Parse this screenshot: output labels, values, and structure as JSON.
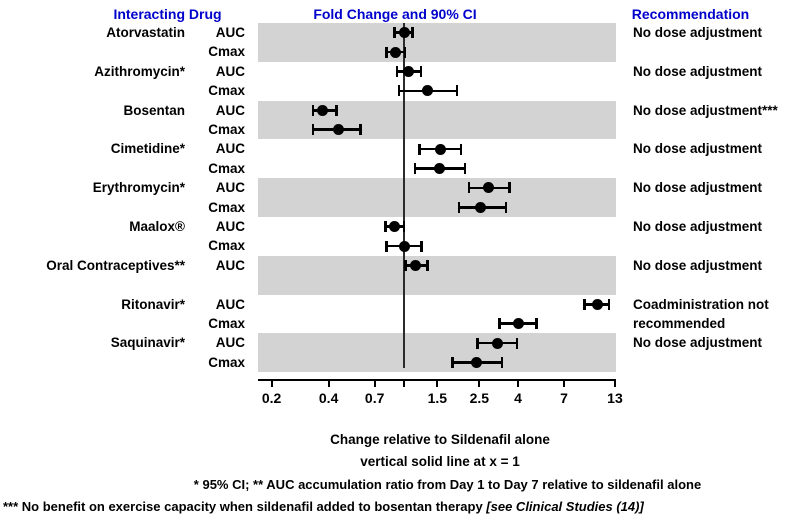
{
  "header": {
    "interacting_drug": "Interacting Drug",
    "fold_change": "Fold Change and 90% CI",
    "recommendation": "Recommendation"
  },
  "colors": {
    "header_blue": "#0000CC",
    "band_gray": "#D3D3D3",
    "marker_black": "#000000"
  },
  "chart_data": {
    "type": "scatter",
    "variant": "forest-plot-with-error-bars",
    "x_scale": "log",
    "x_range": [
      0.17,
      13.2
    ],
    "reference_line_x": 1,
    "reference_line_note": "vertical solid line at x = 1",
    "xlabel": "Change relative to Sildenafil alone",
    "x_ticks": [
      {
        "v": 0.2,
        "label": "0.2"
      },
      {
        "v": 0.4,
        "label": "0.4"
      },
      {
        "v": 0.7,
        "label": "0.7"
      },
      {
        "v": 1,
        "label": ""
      },
      {
        "v": 1.5,
        "label": "1.5"
      },
      {
        "v": 2.5,
        "label": "2.5"
      },
      {
        "v": 4,
        "label": "4"
      },
      {
        "v": 7,
        "label": "7"
      },
      {
        "v": 13,
        "label": "13"
      }
    ],
    "ci_level_default": "90% CI",
    "groups": [
      {
        "drug": "Atorvastatin",
        "recommendation": "No dose adjustment",
        "shaded": true,
        "rows": [
          {
            "param": "AUC",
            "value": 1.0,
            "lo": 0.89,
            "hi": 1.11
          },
          {
            "param": "Cmax",
            "value": 0.9,
            "lo": 0.81,
            "hi": 1.01
          }
        ]
      },
      {
        "drug": "Azithromycin*",
        "recommendation": "No dose adjustment",
        "shaded": false,
        "rows": [
          {
            "param": "AUC",
            "value": 1.05,
            "lo": 0.92,
            "hi": 1.23
          },
          {
            "param": "Cmax",
            "value": 1.33,
            "lo": 0.94,
            "hi": 1.9
          }
        ]
      },
      {
        "drug": "Bosentan",
        "recommendation": "No dose adjustment***",
        "shaded": true,
        "rows": [
          {
            "param": "AUC",
            "value": 0.37,
            "lo": 0.33,
            "hi": 0.44
          },
          {
            "param": "Cmax",
            "value": 0.45,
            "lo": 0.33,
            "hi": 0.59
          }
        ]
      },
      {
        "drug": "Cimetidine*",
        "recommendation": "No dose adjustment",
        "shaded": false,
        "rows": [
          {
            "param": "AUC",
            "value": 1.56,
            "lo": 1.21,
            "hi": 2.0
          },
          {
            "param": "Cmax",
            "value": 1.54,
            "lo": 1.14,
            "hi": 2.1
          }
        ]
      },
      {
        "drug": "Erythromycin*",
        "recommendation": "No dose adjustment",
        "shaded": true,
        "rows": [
          {
            "param": "AUC",
            "value": 2.8,
            "lo": 2.2,
            "hi": 3.6
          },
          {
            "param": "Cmax",
            "value": 2.55,
            "lo": 1.95,
            "hi": 3.45
          }
        ]
      },
      {
        "drug": "Maalox®",
        "recommendation": "No dose adjustment",
        "shaded": false,
        "rows": [
          {
            "param": "AUC",
            "value": 0.89,
            "lo": 0.8,
            "hi": 1.0
          },
          {
            "param": "Cmax",
            "value": 1.0,
            "lo": 0.81,
            "hi": 1.24
          }
        ]
      },
      {
        "drug": "Oral Contraceptives**",
        "recommendation": "No dose adjustment",
        "shaded": true,
        "rows": [
          {
            "param": "AUC",
            "value": 1.15,
            "lo": 1.02,
            "hi": 1.33
          }
        ]
      },
      {
        "drug": "Ritonavir*",
        "recommendation": "Coadministration not recommended",
        "shaded": false,
        "rows": [
          {
            "param": "AUC",
            "value": 10.5,
            "lo": 9.0,
            "hi": 12.1
          },
          {
            "param": "Cmax",
            "value": 4.0,
            "lo": 3.2,
            "hi": 5.0
          }
        ]
      },
      {
        "drug": "Saquinavir*",
        "recommendation": "No dose adjustment",
        "shaded": true,
        "rows": [
          {
            "param": "AUC",
            "value": 3.1,
            "lo": 2.45,
            "hi": 3.95
          },
          {
            "param": "Cmax",
            "value": 2.4,
            "lo": 1.8,
            "hi": 3.3
          }
        ]
      }
    ]
  },
  "footer": {
    "xlabel": "Change relative to Sildenafil alone",
    "note_line": "vertical solid line at x = 1",
    "footnote1": "* 95% CI;  ** AUC accumulation ratio from Day 1 to Day 7 relative to sildenafil alone",
    "footnote2_main": "*** No benefit on exercise capacity when sildenafil added to bosentan therapy ",
    "footnote2_italic": "[see Clinical Studies (14)]"
  }
}
